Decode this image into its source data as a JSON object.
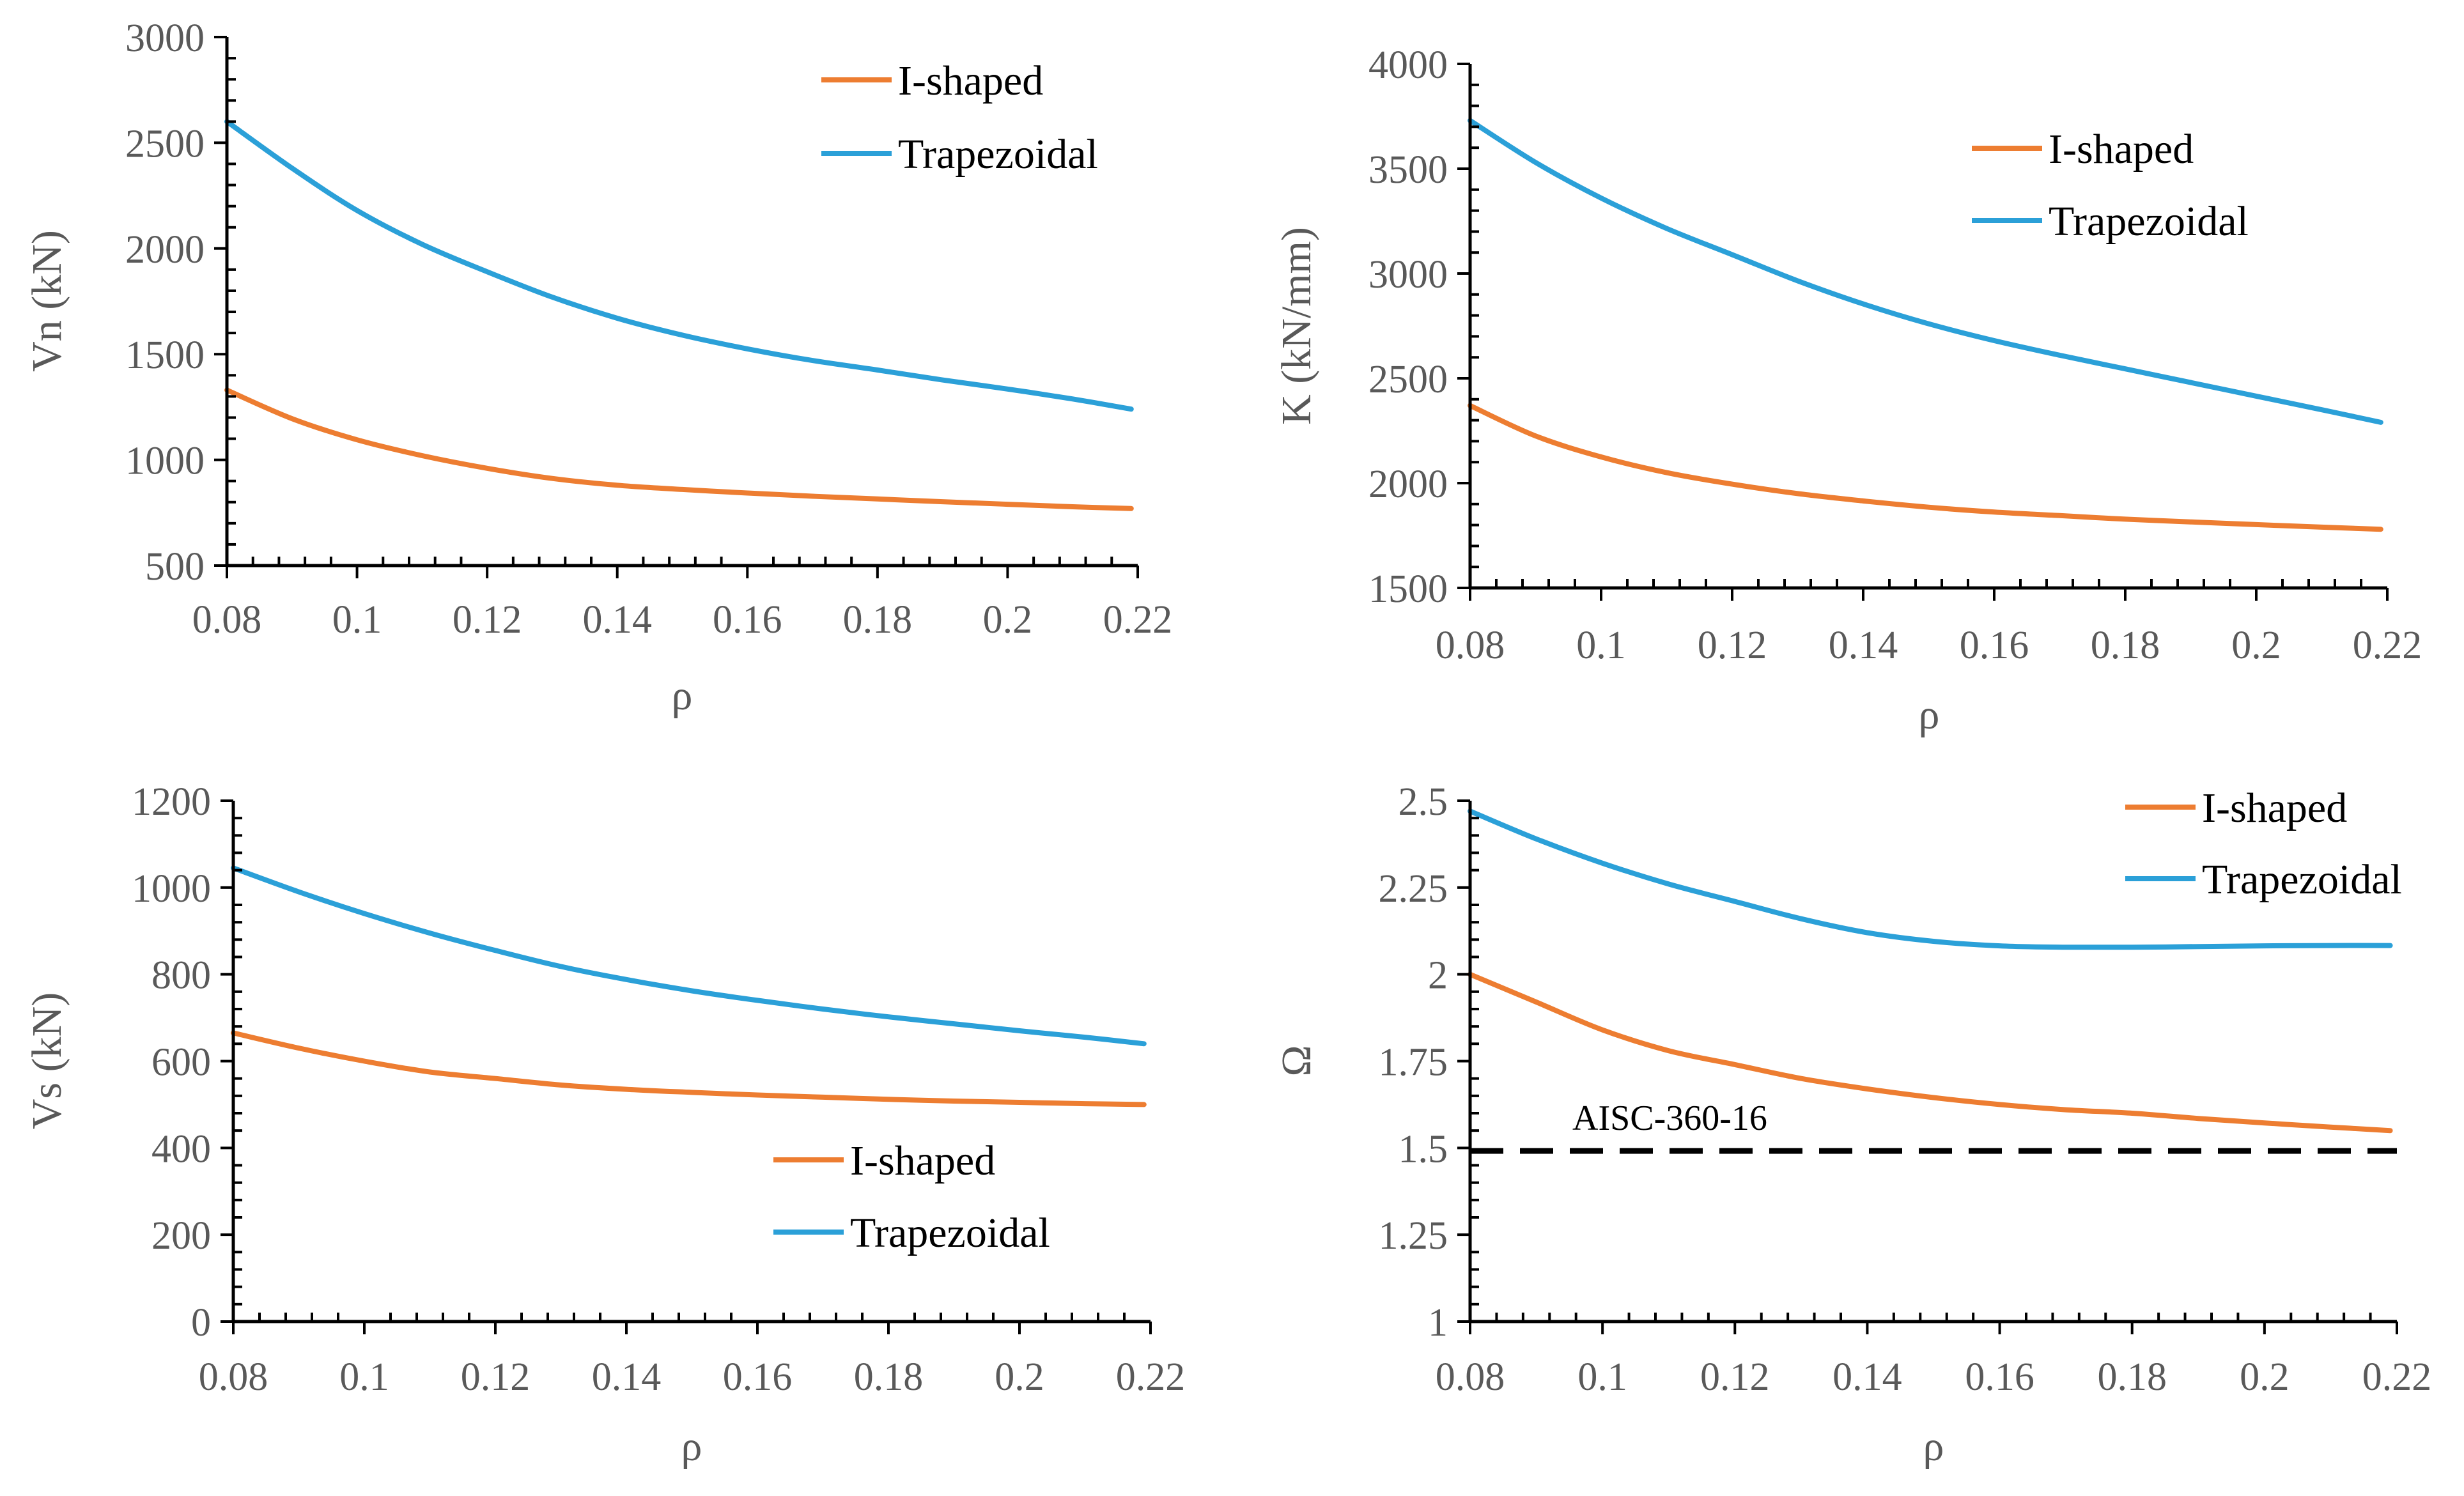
{
  "colors": {
    "i_shaped": "#ED7D31",
    "trapezoidal": "#2BA0D8",
    "axis": "#000000",
    "tick_text": "#595959",
    "reference": "#000000"
  },
  "chart_data": [
    {
      "id": "vn",
      "type": "line",
      "title": "",
      "xlabel": "ρ",
      "ylabel": "Vn (kN)",
      "xlim": [
        0.08,
        0.22
      ],
      "ylim": [
        500,
        3000
      ],
      "x_ticks": [
        0.08,
        0.1,
        0.12,
        0.14,
        0.16,
        0.18,
        0.2,
        0.22
      ],
      "x_tick_labels": [
        "0.08",
        "0.1",
        "0.12",
        "0.14",
        "0.16",
        "0.18",
        "0.2",
        "0.22"
      ],
      "y_ticks": [
        500,
        1000,
        1500,
        2000,
        2500,
        3000
      ],
      "y_tick_labels": [
        "500",
        "1000",
        "1500",
        "2000",
        "2500",
        "3000"
      ],
      "legend_position": "top-right",
      "x": [
        0.08,
        0.09,
        0.1,
        0.11,
        0.12,
        0.13,
        0.14,
        0.15,
        0.16,
        0.17,
        0.18,
        0.19,
        0.2,
        0.21,
        0.219
      ],
      "series": [
        {
          "name": "I-shaped",
          "color_key": "i_shaped",
          "values": [
            1330,
            1195,
            1095,
            1020,
            960,
            912,
            880,
            860,
            843,
            828,
            815,
            802,
            790,
            778,
            770
          ]
        },
        {
          "name": "Trapezoidal",
          "color_key": "trapezoidal",
          "values": [
            2600,
            2380,
            2180,
            2020,
            1890,
            1770,
            1670,
            1590,
            1525,
            1470,
            1425,
            1378,
            1335,
            1288,
            1240
          ]
        }
      ]
    },
    {
      "id": "k",
      "type": "line",
      "title": "",
      "xlabel": "ρ",
      "ylabel": "K (kN/mm)",
      "xlim": [
        0.08,
        0.22
      ],
      "ylim": [
        1500,
        4000
      ],
      "x_ticks": [
        0.08,
        0.1,
        0.12,
        0.14,
        0.16,
        0.18,
        0.2,
        0.22
      ],
      "x_tick_labels": [
        "0.08",
        "0.1",
        "0.12",
        "0.14",
        "0.16",
        "0.18",
        "0.2",
        "0.22"
      ],
      "y_ticks": [
        1500,
        2000,
        2500,
        3000,
        3500,
        4000
      ],
      "y_tick_labels": [
        "1500",
        "2000",
        "2500",
        "3000",
        "3500",
        "4000"
      ],
      "legend_position": "top-right",
      "x": [
        0.08,
        0.09,
        0.1,
        0.11,
        0.12,
        0.13,
        0.14,
        0.15,
        0.16,
        0.17,
        0.18,
        0.19,
        0.2,
        0.21,
        0.219
      ],
      "series": [
        {
          "name": "I-shaped",
          "color_key": "i_shaped",
          "values": [
            2370,
            2225,
            2125,
            2050,
            1995,
            1950,
            1915,
            1885,
            1862,
            1845,
            1828,
            1815,
            1802,
            1790,
            1780
          ]
        },
        {
          "name": "Trapezoidal",
          "color_key": "trapezoidal",
          "values": [
            3730,
            3530,
            3360,
            3215,
            3090,
            2965,
            2855,
            2760,
            2680,
            2610,
            2545,
            2480,
            2415,
            2350,
            2290
          ]
        }
      ]
    },
    {
      "id": "vs",
      "type": "line",
      "title": "",
      "xlabel": "ρ",
      "ylabel": "Vs (kN)",
      "xlim": [
        0.08,
        0.22
      ],
      "ylim": [
        0,
        1200
      ],
      "x_ticks": [
        0.08,
        0.1,
        0.12,
        0.14,
        0.16,
        0.18,
        0.2,
        0.22
      ],
      "x_tick_labels": [
        "0.08",
        "0.1",
        "0.12",
        "0.14",
        "0.16",
        "0.18",
        "0.2",
        "0.22"
      ],
      "y_ticks": [
        0,
        200,
        400,
        600,
        800,
        1000,
        1200
      ],
      "y_tick_labels": [
        "0",
        "200",
        "400",
        "600",
        "800",
        "1000",
        "1200"
      ],
      "legend_position": "bottom-right",
      "x": [
        0.08,
        0.09,
        0.1,
        0.11,
        0.12,
        0.13,
        0.14,
        0.15,
        0.16,
        0.17,
        0.18,
        0.19,
        0.2,
        0.21,
        0.219
      ],
      "series": [
        {
          "name": "I-shaped",
          "color_key": "i_shaped",
          "values": [
            665,
            630,
            600,
            575,
            560,
            545,
            535,
            528,
            522,
            517,
            512,
            508,
            505,
            502,
            500
          ]
        },
        {
          "name": "Trapezoidal",
          "color_key": "trapezoidal",
          "values": [
            1045,
            990,
            940,
            895,
            855,
            818,
            788,
            762,
            740,
            720,
            702,
            686,
            670,
            655,
            640
          ]
        }
      ]
    },
    {
      "id": "omega",
      "type": "line",
      "title": "",
      "xlabel": "ρ",
      "ylabel": "Ω",
      "xlim": [
        0.08,
        0.22
      ],
      "ylim": [
        1,
        2.5
      ],
      "x_ticks": [
        0.08,
        0.1,
        0.12,
        0.14,
        0.16,
        0.18,
        0.2,
        0.22
      ],
      "x_tick_labels": [
        "0.08",
        "0.1",
        "0.12",
        "0.14",
        "0.16",
        "0.18",
        "0.2",
        "0.22"
      ],
      "y_ticks": [
        1,
        1.25,
        1.5,
        1.75,
        2,
        2.25,
        2.5
      ],
      "y_tick_labels": [
        "1",
        "1.25",
        "1.5",
        "1.75",
        "2",
        "2.25",
        "2.5"
      ],
      "legend_position": "top-right",
      "x": [
        0.08,
        0.09,
        0.1,
        0.11,
        0.12,
        0.13,
        0.14,
        0.15,
        0.16,
        0.17,
        0.18,
        0.19,
        0.2,
        0.21,
        0.219
      ],
      "series": [
        {
          "name": "I-shaped",
          "color_key": "i_shaped",
          "values": [
            2.0,
            1.92,
            1.84,
            1.78,
            1.74,
            1.7,
            1.67,
            1.645,
            1.625,
            1.61,
            1.6,
            1.585,
            1.572,
            1.56,
            1.55
          ]
        },
        {
          "name": "Trapezoidal",
          "color_key": "trapezoidal",
          "values": [
            2.47,
            2.39,
            2.32,
            2.26,
            2.21,
            2.16,
            2.12,
            2.095,
            2.082,
            2.078,
            2.078,
            2.08,
            2.082,
            2.083,
            2.083
          ]
        }
      ],
      "reference_line": {
        "label": "AISC-360-16",
        "y": 1.5,
        "style": "dashed"
      }
    }
  ]
}
